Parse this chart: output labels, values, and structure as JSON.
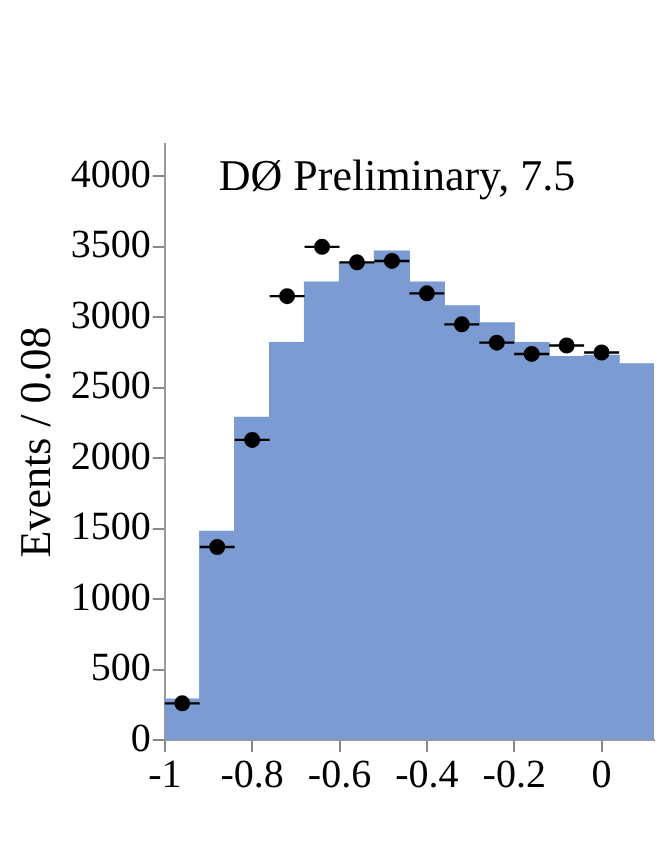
{
  "chart_data": {
    "type": "histogram",
    "ylabel": "Events / 0.08",
    "annotations": [
      "DØ Preliminary, 7.5"
    ],
    "bins": [
      -1,
      -0.92,
      -0.84,
      -0.76,
      -0.68,
      -0.6,
      -0.52,
      -0.44,
      -0.36,
      -0.28,
      -0.2,
      -0.12,
      -0.04,
      0.04,
      0.12
    ],
    "series": [
      {
        "color": "#7b9bd2",
        "values": [
          290,
          1480,
          2290,
          2820,
          3250,
          3390,
          3470,
          3250,
          3080,
          2960,
          2820,
          2720,
          2730,
          2670
        ]
      },
      {
        "type": "scatter",
        "color": "#000000",
        "x": [
          -0.96,
          -0.88,
          -0.8,
          -0.72,
          -0.64,
          -0.56,
          -0.48,
          -0.4,
          -0.32,
          -0.24,
          -0.16,
          -0.08,
          0
        ],
        "values": [
          260,
          1370,
          2130,
          3150,
          3500,
          3390,
          3400,
          3170,
          2950,
          2820,
          2740,
          2800,
          2750
        ],
        "xerrors": [
          0.04,
          0.04,
          0.04,
          0.04,
          0.04,
          0.04,
          0.04,
          0.04,
          0.04,
          0.04,
          0.04,
          0.04,
          0.04
        ]
      }
    ],
    "xlim": [
      -1,
      0.12
    ],
    "xticks": [
      -1,
      -0.8,
      -0.6,
      -0.4,
      -0.2,
      0
    ],
    "ylim": [
      0,
      4230
    ],
    "yticks": [
      0,
      500,
      1000,
      1500,
      2000,
      2500,
      3000,
      3500,
      4000
    ],
    "grid": false,
    "legend": false,
    "marker": "circle"
  }
}
